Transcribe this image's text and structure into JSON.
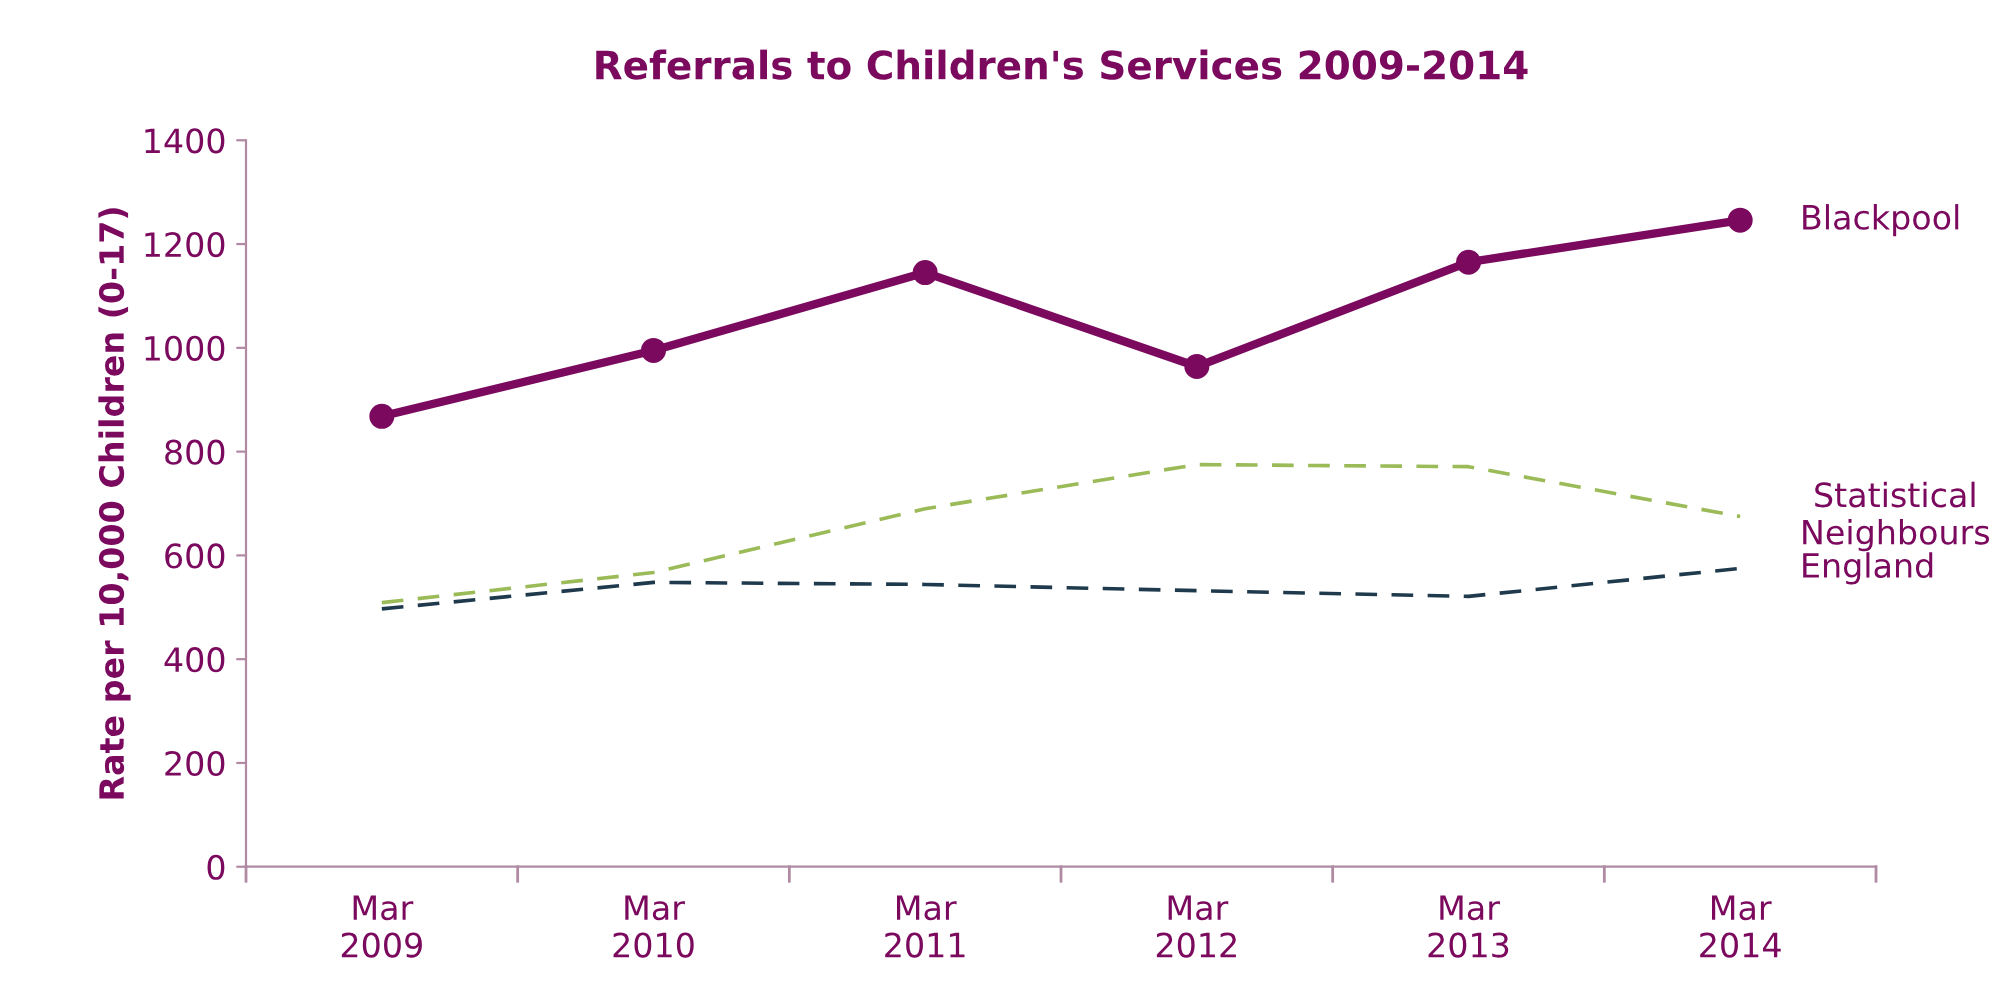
{
  "chart_data": {
    "type": "line",
    "title": "Referrals to Children's Services 2009-2014",
    "ylabel": "Rate per 10,000 Children (0-17)",
    "categories": [
      "Mar\n2009",
      "Mar\n2010",
      "Mar\n2011",
      "Mar\n2012",
      "Mar\n2013",
      "Mar\n2014"
    ],
    "series": [
      {
        "name": "Blackpool",
        "color": "#7b0a5f",
        "values": [
          868,
          995,
          1145,
          964,
          1165,
          1246
        ],
        "marker": "circle",
        "line_style": "solid"
      },
      {
        "name": "Statistical\nNeighbours",
        "color": "#9bbb59",
        "values": [
          509,
          567,
          690,
          775,
          771,
          675
        ],
        "marker": "none",
        "line_style": "dashed"
      },
      {
        "name": "England",
        "color": "#1f3a4d",
        "values": [
          497,
          548,
          544,
          532,
          521,
          575
        ],
        "marker": "none",
        "line_style": "dashed"
      }
    ],
    "ylim": [
      0,
      1400
    ],
    "yticks": [
      0,
      200,
      400,
      600,
      800,
      1000,
      1200,
      1400
    ],
    "grid": false,
    "legend": false
  }
}
